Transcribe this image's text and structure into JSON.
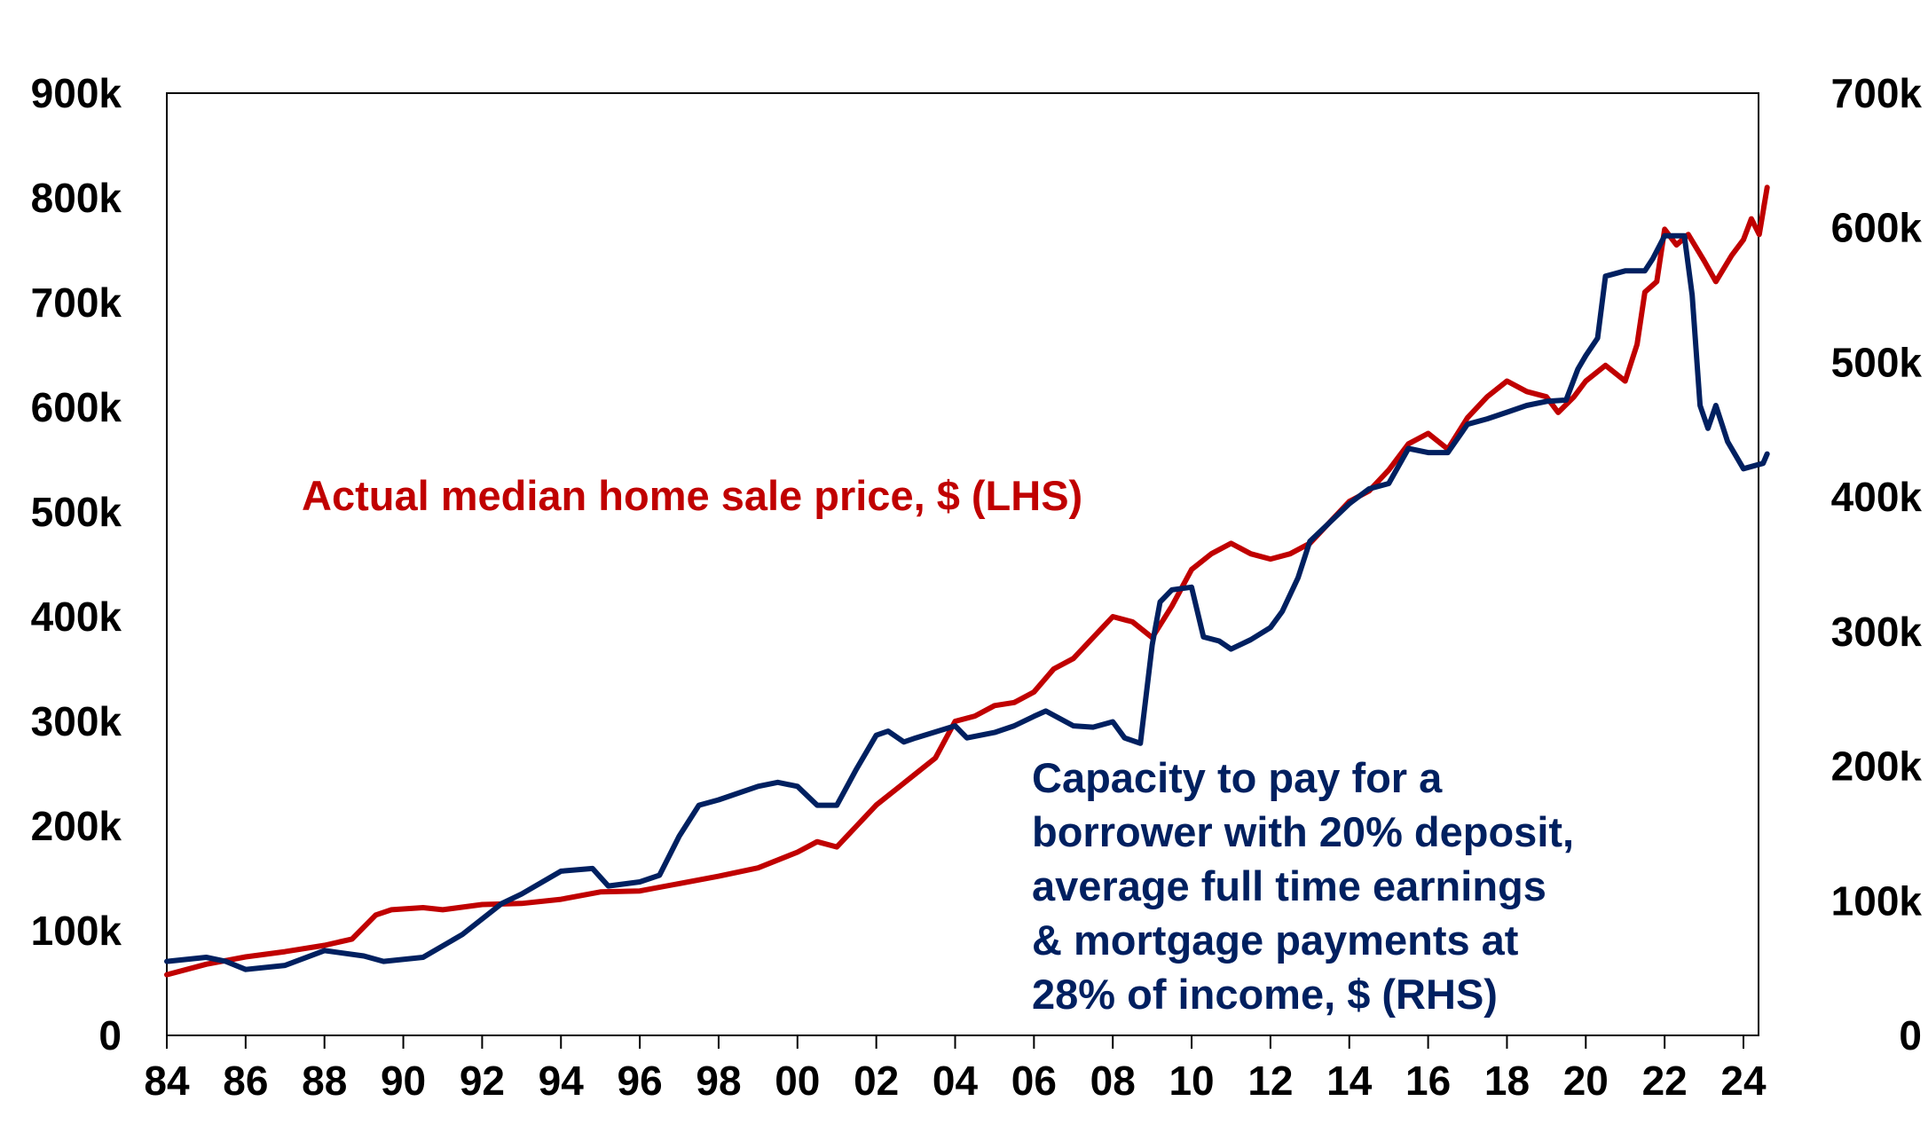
{
  "chart_data": {
    "type": "line",
    "title": "",
    "xlabel": "",
    "ylabel": "",
    "xlim": [
      1984,
      2024.8
    ],
    "ylim_left": [
      0,
      900
    ],
    "ylim_right": [
      0,
      700
    ],
    "x_ticks": [
      1984,
      1986,
      1988,
      1990,
      1992,
      1994,
      1996,
      1998,
      2000,
      2002,
      2004,
      2006,
      2008,
      2010,
      2012,
      2014,
      2016,
      2018,
      2020,
      2022,
      2024
    ],
    "x_tick_labels": [
      "84",
      "86",
      "88",
      "90",
      "92",
      "94",
      "96",
      "98",
      "00",
      "02",
      "04",
      "06",
      "08",
      "10",
      "12",
      "14",
      "16",
      "18",
      "20",
      "22",
      "24"
    ],
    "y_left_ticks": [
      0,
      100,
      200,
      300,
      400,
      500,
      600,
      700,
      800,
      900
    ],
    "y_left_tick_labels": [
      "0",
      "100k",
      "200k",
      "300k",
      "400k",
      "500k",
      "600k",
      "700k",
      "800k",
      "900k"
    ],
    "y_right_ticks": [
      0,
      100,
      200,
      300,
      400,
      500,
      600,
      700
    ],
    "y_right_tick_labels": [
      "0",
      "100k",
      "200k",
      "300k",
      "400k",
      "500k",
      "600k",
      "700k"
    ],
    "grid": false,
    "series": [
      {
        "name": "Actual median home sale price, $ (LHS)",
        "axis": "left",
        "color": "#C00000",
        "x": [
          1984,
          1985,
          1986,
          1987,
          1988,
          1988.7,
          1989.3,
          1989.7,
          1990.5,
          1991,
          1992,
          1993,
          1994,
          1995,
          1996,
          1997,
          1998,
          1999,
          2000,
          2000.5,
          2001,
          2001.5,
          2002,
          2002.5,
          2003,
          2003.5,
          2004,
          2004.5,
          2005,
          2005.5,
          2006,
          2006.5,
          2007,
          2007.5,
          2008,
          2008.5,
          2009,
          2009.5,
          2010,
          2010.5,
          2011,
          2011.5,
          2012,
          2012.5,
          2013,
          2013.5,
          2014,
          2014.5,
          2015,
          2015.5,
          2016,
          2016.5,
          2017,
          2017.5,
          2018,
          2018.5,
          2019,
          2019.3,
          2019.7,
          2020,
          2020.5,
          2021,
          2021.3,
          2021.5,
          2021.8,
          2022,
          2022.3,
          2022.6,
          2023,
          2023.3,
          2023.7,
          2024,
          2024.2,
          2024.4,
          2024.6
        ],
        "values": [
          58,
          68,
          75,
          80,
          86,
          92,
          115,
          120,
          122,
          120,
          125,
          126,
          130,
          137,
          138,
          145,
          152,
          160,
          175,
          185,
          180,
          200,
          220,
          235,
          250,
          265,
          300,
          305,
          315,
          318,
          328,
          350,
          360,
          380,
          400,
          395,
          380,
          410,
          445,
          460,
          470,
          460,
          455,
          460,
          470,
          490,
          510,
          520,
          540,
          565,
          575,
          560,
          590,
          610,
          625,
          615,
          610,
          595,
          610,
          625,
          640,
          625,
          660,
          710,
          720,
          770,
          755,
          765,
          740,
          720,
          745,
          760,
          780,
          765,
          810
        ]
      },
      {
        "name": "Capacity to pay for a borrower with 20% deposit, average full time earnings & mortgage payments at 28% of income, $ (RHS)",
        "axis": "right",
        "color": "#002060",
        "x": [
          1984,
          1985,
          1985.5,
          1986,
          1987,
          1988,
          1989,
          1989.5,
          1990.5,
          1991.5,
          1992.5,
          1993,
          1994,
          1994.8,
          1995.2,
          1996,
          1996.5,
          1997,
          1997.5,
          1998,
          1999,
          1999.5,
          2000,
          2000.5,
          2001,
          2001.5,
          2002,
          2002.3,
          2002.7,
          2003,
          2004,
          2004.3,
          2005,
          2005.5,
          2006,
          2006.3,
          2007,
          2007.5,
          2008,
          2008.3,
          2008.7,
          2009,
          2009.2,
          2009.5,
          2010,
          2010.3,
          2010.7,
          2011,
          2011.5,
          2012,
          2012.3,
          2012.7,
          2013,
          2013.5,
          2014,
          2014.5,
          2015,
          2015.5,
          2016,
          2016.5,
          2017,
          2017.5,
          2018,
          2018.5,
          2019,
          2019.5,
          2019.8,
          2020,
          2020.3,
          2020.5,
          2021,
          2021.5,
          2021.7,
          2022,
          2022.5,
          2022.7,
          2022.9,
          2023.1,
          2023.3,
          2023.6,
          2024,
          2024.5,
          2024.6
        ],
        "values": [
          55,
          58,
          55,
          49,
          52,
          63,
          59,
          55,
          58,
          75,
          98,
          105,
          122,
          124,
          111,
          114,
          119,
          148,
          171,
          175,
          185,
          188,
          185,
          171,
          171,
          198,
          223,
          226,
          218,
          221,
          230,
          221,
          225,
          230,
          237,
          241,
          230,
          229,
          233,
          221,
          217,
          290,
          322,
          331,
          333,
          296,
          293,
          287,
          294,
          303,
          315,
          340,
          367,
          381,
          395,
          406,
          410,
          436,
          433,
          433,
          454,
          458,
          463,
          468,
          471,
          472,
          495,
          505,
          518,
          564,
          568,
          568,
          577,
          594,
          594,
          550,
          468,
          451,
          468,
          441,
          421,
          425,
          432
        ]
      }
    ],
    "annotations": {
      "red_label": "Actual median home sale price, $ (LHS)",
      "blue_label_lines": [
        "Capacity to pay for a",
        "borrower with 20% deposit,",
        "average full time earnings",
        "& mortgage payments at",
        "28% of income, $ (RHS)"
      ]
    },
    "legend": "none"
  }
}
